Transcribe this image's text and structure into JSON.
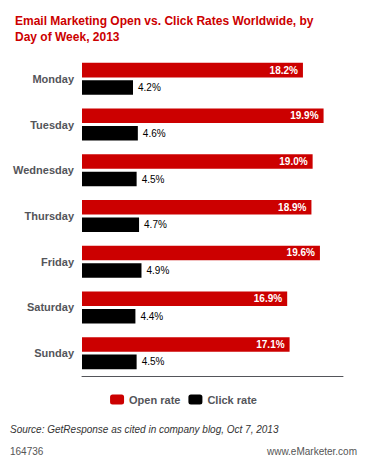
{
  "chart_data": {
    "type": "bar",
    "title": "Email Marketing Open vs. Click Rates Worldwide, by\nDay of Week, 2013",
    "orientation": "horizontal",
    "categories": [
      "Monday",
      "Tuesday",
      "Wednesday",
      "Thursday",
      "Friday",
      "Saturday",
      "Sunday"
    ],
    "series": [
      {
        "name": "Open rate",
        "color": "#CC0000",
        "values": [
          18.2,
          19.9,
          19.0,
          18.9,
          19.6,
          16.9,
          17.1
        ],
        "value_labels": [
          "18.2%",
          "19.9%",
          "19.0%",
          "18.9%",
          "19.6%",
          "16.9%",
          "17.1%"
        ]
      },
      {
        "name": "Click rate",
        "color": "#000000",
        "values": [
          4.2,
          4.6,
          4.5,
          4.7,
          4.9,
          4.4,
          4.5
        ],
        "value_labels": [
          "4.2%",
          "4.6%",
          "4.5%",
          "4.7%",
          "4.9%",
          "4.4%",
          "4.5%"
        ]
      }
    ],
    "xlim": [
      0,
      21.5
    ],
    "data_labels": true,
    "tick_labels": "y",
    "grid": false,
    "legend": "bottom",
    "annotations": [
      "Source: GetResponse as cited in company blog, Oct 7, 2013",
      "164736",
      "www.eMarketer.com"
    ]
  }
}
